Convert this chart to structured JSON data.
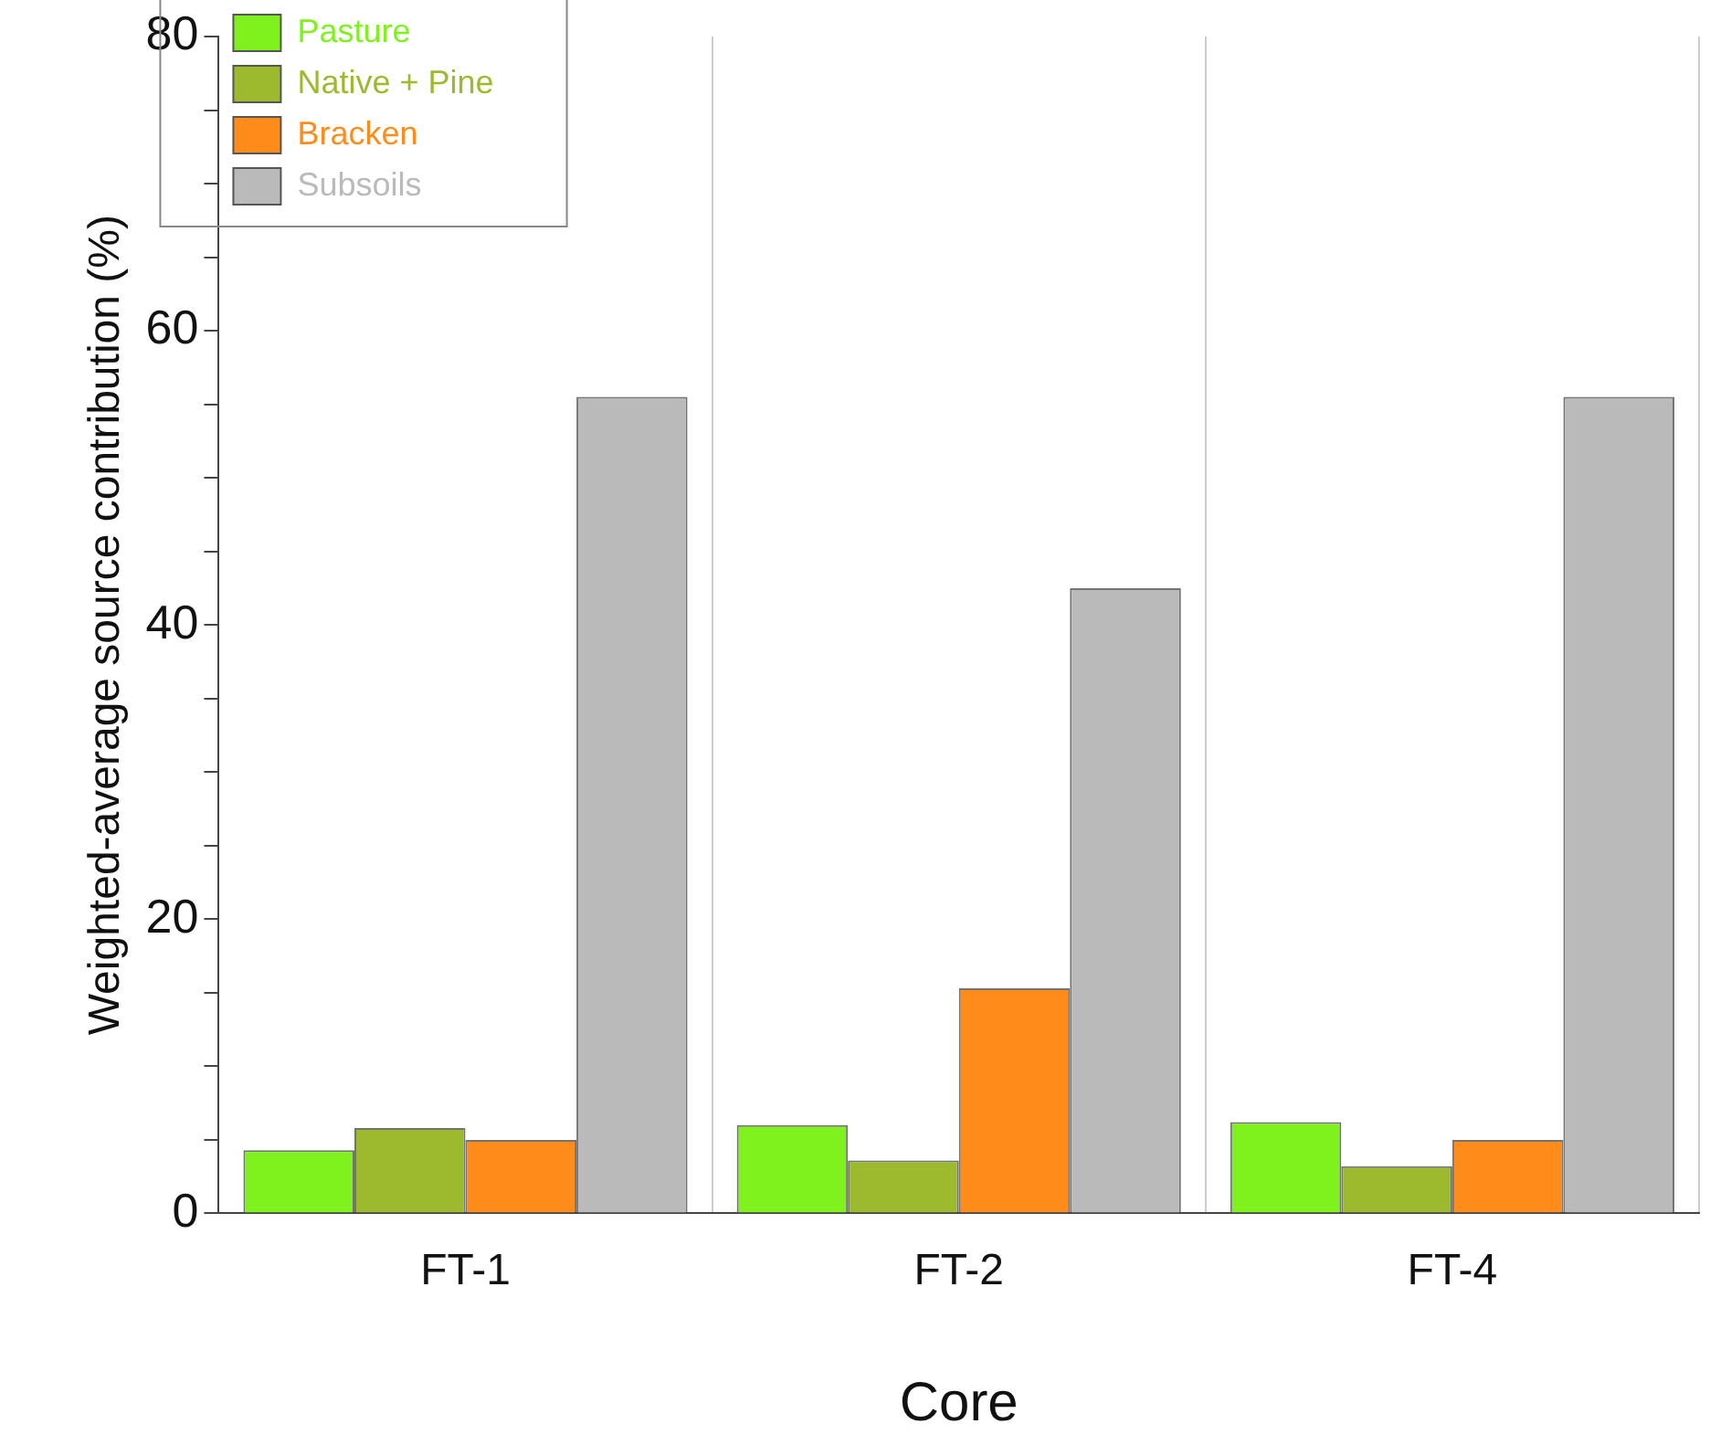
{
  "chart_data": {
    "type": "bar",
    "xlabel": "Core",
    "ylabel": "Weighted-average source contribution (%)",
    "categories": [
      "FT-1",
      "FT-2",
      "FT-4"
    ],
    "series": [
      {
        "name": "Pasture",
        "color": "#7ff21e",
        "values": [
          4.3,
          6.0,
          6.2
        ]
      },
      {
        "name": "Native + Pine",
        "color": "#9dba2e",
        "values": [
          5.8,
          3.6,
          3.2
        ]
      },
      {
        "name": "Bracken",
        "color": "#ff8c1a",
        "values": [
          5.0,
          15.3,
          5.0
        ]
      },
      {
        "name": "Subsoils",
        "color": "#bababa",
        "values": [
          55.5,
          42.5,
          55.5
        ]
      }
    ],
    "ylim": [
      0,
      80
    ],
    "yticks": [
      0,
      {
        "value": 5,
        "label": null
      },
      {
        "value": 10,
        "label": null
      },
      {
        "value": 15,
        "label": null
      },
      20,
      {
        "value": 25,
        "label": null
      },
      {
        "value": 30,
        "label": null
      },
      {
        "value": 35,
        "label": null
      },
      40,
      {
        "value": 45,
        "label": null
      },
      {
        "value": 50,
        "label": null
      },
      {
        "value": 55,
        "label": null
      },
      60,
      {
        "value": 65,
        "label": null
      },
      {
        "value": 70,
        "label": null
      },
      {
        "value": 75,
        "label": null
      },
      80
    ],
    "grid": "x",
    "legend": "top left"
  }
}
